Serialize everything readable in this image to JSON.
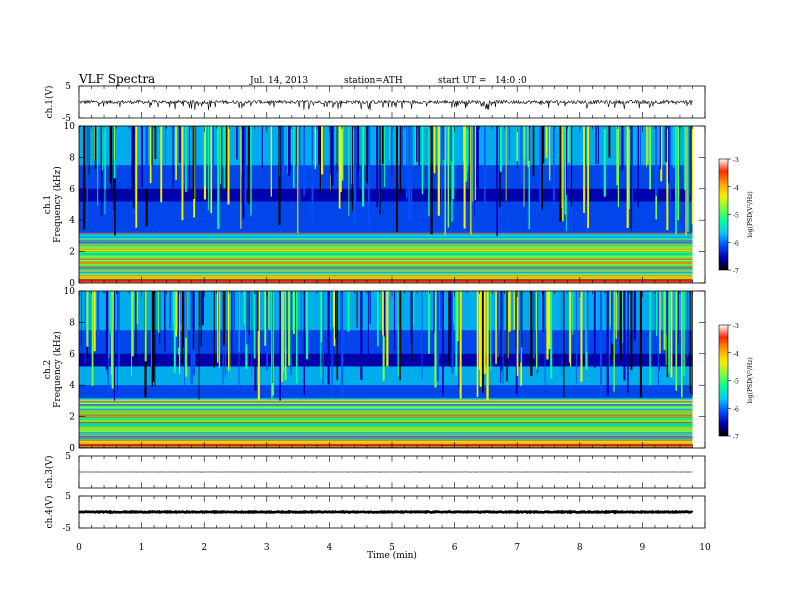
{
  "header": {
    "title": "VLF Spectra",
    "date": "Jul. 14, 2013",
    "station": "station=ATH",
    "start": "start UT =   14:0 :0"
  },
  "colorbar": {
    "label": "log(PSD(V²/Hz)",
    "ticks": [
      "-3",
      "-4",
      "-5",
      "-6",
      "-7"
    ],
    "range": [
      -7,
      -3
    ],
    "colormap": [
      "#000000",
      "#0000b4",
      "#0050ff",
      "#00c8ff",
      "#00ff9b",
      "#78ff3c",
      "#f5f000",
      "#ffa000",
      "#ff2800",
      "#ffffff"
    ]
  },
  "chart_data": [
    {
      "type": "line",
      "ylabel": "ch.1(V)",
      "ylim": [
        -5,
        5
      ],
      "yticks": [
        "5",
        "-5"
      ],
      "xlim": [
        0,
        10
      ],
      "series": [
        {
          "mean": 0,
          "noise_amplitude": 1,
          "end_min": 9.8
        }
      ]
    },
    {
      "type": "heatmap",
      "channel_label": "ch.1",
      "ylabel": "Frequency (kHz)",
      "ylim": [
        0,
        10
      ],
      "yticks": [
        "0",
        "2",
        "4",
        "6",
        "8",
        "10"
      ],
      "xlim": [
        0,
        10
      ],
      "end_min": 9.8
    },
    {
      "type": "heatmap",
      "channel_label": "ch.2",
      "ylabel": "Frequency (kHz)",
      "ylim": [
        0,
        10
      ],
      "yticks": [
        "0",
        "2",
        "4",
        "6",
        "8",
        "10"
      ],
      "xlim": [
        0,
        10
      ],
      "end_min": 9.8
    },
    {
      "type": "line",
      "ylabel": "ch.3(V)",
      "ylim": [
        -5,
        5
      ],
      "yticks": [
        "5"
      ],
      "xlim": [
        0,
        10
      ],
      "series": [
        {
          "mean": 0,
          "noise_amplitude": 0.05,
          "end_min": 9.8
        }
      ]
    },
    {
      "type": "line",
      "ylabel": "ch.4(V)",
      "ylim": [
        -5,
        5
      ],
      "yticks": [
        "5",
        "-5"
      ],
      "xlim": [
        0,
        10
      ],
      "series": [
        {
          "mean": 0,
          "noise_amplitude": 0.25,
          "end_min": 9.8
        }
      ]
    }
  ],
  "xaxis": {
    "label": "Time (min)",
    "ticks": [
      "0",
      "1",
      "2",
      "3",
      "4",
      "5",
      "6",
      "7",
      "8",
      "9",
      "10"
    ]
  }
}
